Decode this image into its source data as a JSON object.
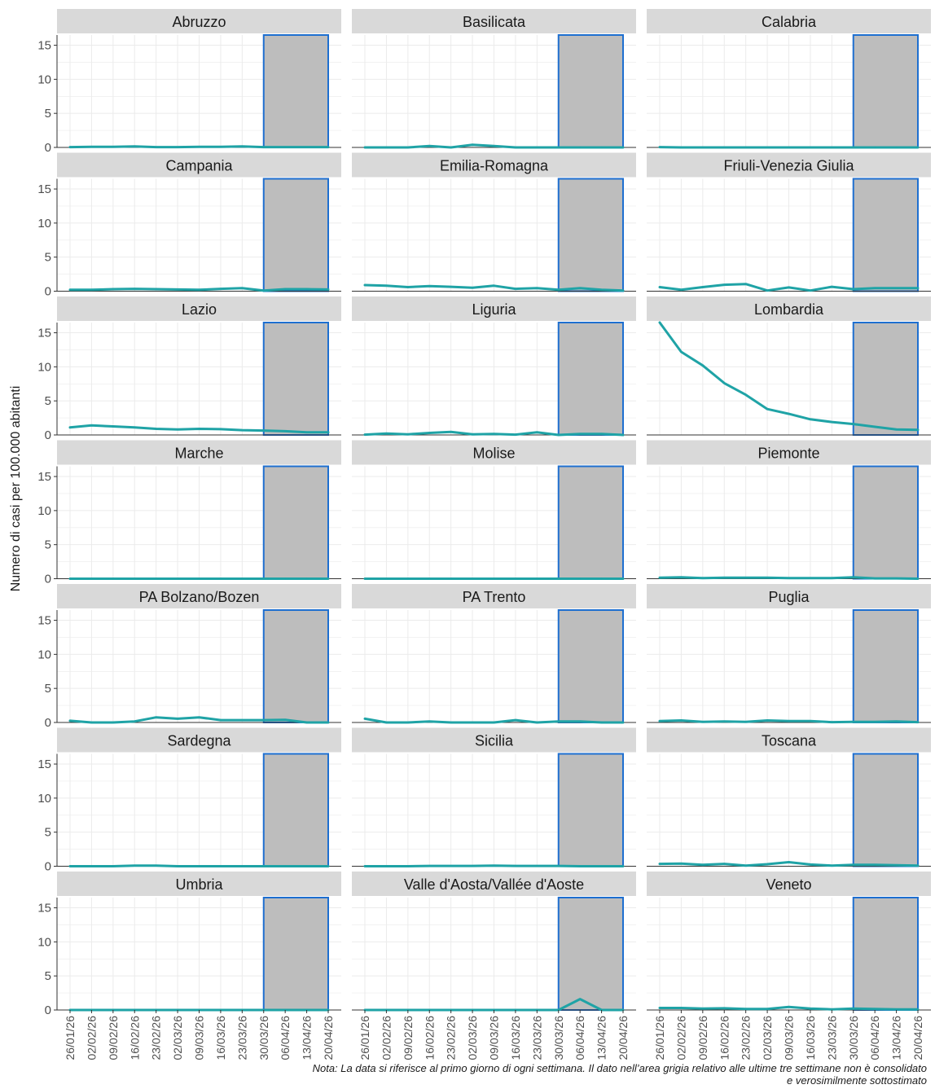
{
  "chart_data": {
    "type": "line",
    "layout": "small-multiples",
    "ylabel": "Numero di casi per 100.000 abitanti",
    "xlabel": "",
    "ylim": [
      0,
      16.5
    ],
    "yticks": [
      0,
      5,
      10,
      15
    ],
    "grid": true,
    "x": [
      "26/01/26",
      "02/02/26",
      "09/02/26",
      "16/02/26",
      "23/02/26",
      "02/03/26",
      "09/03/26",
      "16/03/26",
      "23/03/26",
      "30/03/26",
      "06/04/26",
      "13/04/26",
      "20/04/26"
    ],
    "shaded_range": [
      "30/03/26",
      "20/04/26"
    ],
    "colors": {
      "line": "#1fa3a6",
      "shade_fill": "#bdbdbd",
      "shade_border": "#1e6fd0",
      "strip": "#d9d9d9",
      "grid": "#ebebeb"
    },
    "panels": [
      {
        "name": "Abruzzo",
        "values": [
          0.05,
          0.1,
          0.1,
          0.15,
          0.05,
          0.05,
          0.1,
          0.1,
          0.15,
          0.05,
          0.05,
          0.05,
          0.05
        ]
      },
      {
        "name": "Basilicata",
        "values": [
          0,
          0,
          0,
          0.2,
          0,
          0.4,
          0.2,
          0,
          0,
          0,
          0,
          0,
          0
        ]
      },
      {
        "name": "Calabria",
        "values": [
          0.05,
          0,
          0,
          0,
          0,
          0,
          0,
          0,
          0,
          0,
          0,
          0,
          0
        ]
      },
      {
        "name": "Campania",
        "values": [
          0.2,
          0.2,
          0.3,
          0.35,
          0.3,
          0.25,
          0.2,
          0.35,
          0.45,
          0.1,
          0.3,
          0.3,
          0.25
        ]
      },
      {
        "name": "Emilia-Romagna",
        "values": [
          0.9,
          0.8,
          0.6,
          0.75,
          0.65,
          0.5,
          0.8,
          0.35,
          0.45,
          0.2,
          0.45,
          0.2,
          0.1
        ]
      },
      {
        "name": "Friuli-Venezia Giulia",
        "values": [
          0.6,
          0.2,
          0.6,
          0.95,
          1.05,
          0.1,
          0.55,
          0.1,
          0.65,
          0.3,
          0.45,
          0.45,
          0.45
        ]
      },
      {
        "name": "Lazio",
        "values": [
          1.1,
          1.4,
          1.25,
          1.1,
          0.9,
          0.8,
          0.9,
          0.85,
          0.7,
          0.65,
          0.55,
          0.4,
          0.4
        ]
      },
      {
        "name": "Liguria",
        "values": [
          0.05,
          0.2,
          0.1,
          0.3,
          0.45,
          0.1,
          0.15,
          0.05,
          0.4,
          0,
          0.15,
          0.15,
          0
        ]
      },
      {
        "name": "Lombardia",
        "values": [
          16.5,
          12.2,
          10.2,
          7.6,
          5.9,
          3.8,
          3.1,
          2.3,
          1.9,
          1.6,
          1.2,
          0.8,
          0.75
        ]
      },
      {
        "name": "Marche",
        "values": [
          0,
          0,
          0,
          0,
          0,
          0,
          0,
          0,
          0,
          0,
          0,
          0,
          0
        ]
      },
      {
        "name": "Molise",
        "values": [
          0,
          0,
          0,
          0,
          0,
          0,
          0,
          0,
          0,
          0,
          0,
          0,
          0
        ]
      },
      {
        "name": "Piemonte",
        "values": [
          0.15,
          0.2,
          0.1,
          0.15,
          0.15,
          0.15,
          0.1,
          0.1,
          0.1,
          0.2,
          0.05,
          0.05,
          0
        ]
      },
      {
        "name": "PA Bolzano/Bozen",
        "values": [
          0.25,
          0,
          0,
          0.15,
          0.75,
          0.55,
          0.75,
          0.35,
          0.35,
          0.35,
          0.4,
          0,
          0
        ]
      },
      {
        "name": "PA Trento",
        "values": [
          0.55,
          0,
          0,
          0.15,
          0,
          0,
          0,
          0.35,
          0,
          0.15,
          0.15,
          0,
          0
        ]
      },
      {
        "name": "Puglia",
        "values": [
          0.2,
          0.3,
          0.1,
          0.15,
          0.1,
          0.3,
          0.2,
          0.2,
          0.05,
          0.1,
          0.1,
          0.15,
          0.05
        ]
      },
      {
        "name": "Sardegna",
        "values": [
          0,
          0,
          0,
          0.1,
          0.1,
          0,
          0,
          0,
          0,
          0,
          0,
          0,
          0
        ]
      },
      {
        "name": "Sicilia",
        "values": [
          0,
          0,
          0,
          0.05,
          0.05,
          0.05,
          0.1,
          0.05,
          0.05,
          0.05,
          0,
          0,
          0
        ]
      },
      {
        "name": "Toscana",
        "values": [
          0.35,
          0.4,
          0.2,
          0.35,
          0.1,
          0.3,
          0.6,
          0.25,
          0.1,
          0.2,
          0.2,
          0.15,
          0.1
        ]
      },
      {
        "name": "Umbria",
        "values": [
          0,
          0,
          0,
          0,
          0,
          0,
          0,
          0,
          0,
          0,
          0,
          0,
          0
        ]
      },
      {
        "name": "Valle d'Aosta/Vallée d'Aoste",
        "values": [
          0,
          0,
          0,
          0,
          0,
          0,
          0,
          0,
          0,
          0,
          1.6,
          0,
          0
        ]
      },
      {
        "name": "Veneto",
        "values": [
          0.3,
          0.3,
          0.2,
          0.25,
          0.15,
          0.15,
          0.45,
          0.2,
          0.1,
          0.2,
          0.15,
          0.1,
          0.1
        ]
      }
    ]
  },
  "note": {
    "line1": "Nota: La data si riferisce al primo giorno di ogni settimana. Il dato nell’area grigia relativo alle ultime tre settimane non è consolidato",
    "line2": "e verosimilmente sottostimato"
  }
}
